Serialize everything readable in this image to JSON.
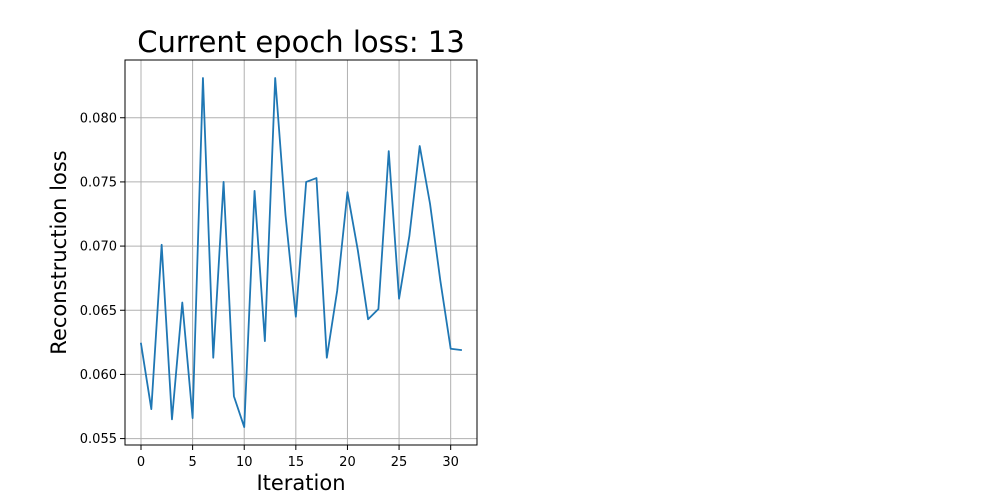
{
  "chart_data": {
    "type": "line",
    "title": "Current epoch loss: 13",
    "xlabel": "Iteration",
    "ylabel": "Reconstruction loss",
    "xlim": [
      -1.55,
      32.55
    ],
    "ylim": [
      0.0545,
      0.0845
    ],
    "xticks": [
      0,
      5,
      10,
      15,
      20,
      25,
      30
    ],
    "xtick_labels": [
      "0",
      "5",
      "10",
      "15",
      "20",
      "25",
      "30"
    ],
    "yticks": [
      0.055,
      0.06,
      0.065,
      0.07,
      0.075,
      0.08
    ],
    "ytick_labels": [
      "0.055",
      "0.060",
      "0.065",
      "0.070",
      "0.075",
      "0.080"
    ],
    "grid": true,
    "series": [
      {
        "color": "#1f77b4",
        "x": [
          0,
          1,
          2,
          3,
          4,
          5,
          6,
          7,
          8,
          9,
          10,
          11,
          12,
          13,
          14,
          15,
          16,
          17,
          18,
          19,
          20,
          21,
          22,
          23,
          24,
          25,
          26,
          27,
          28,
          29,
          30,
          31
        ],
        "y": [
          0.0624,
          0.0573,
          0.0701,
          0.0565,
          0.0656,
          0.0566,
          0.0831,
          0.0613,
          0.075,
          0.0583,
          0.0559,
          0.0743,
          0.0626,
          0.0831,
          0.0724,
          0.0645,
          0.075,
          0.0753,
          0.0613,
          0.0665,
          0.0742,
          0.0697,
          0.0643,
          0.0651,
          0.0774,
          0.0659,
          0.0708,
          0.0778,
          0.0733,
          0.0673,
          0.062,
          0.0619
        ]
      }
    ]
  }
}
